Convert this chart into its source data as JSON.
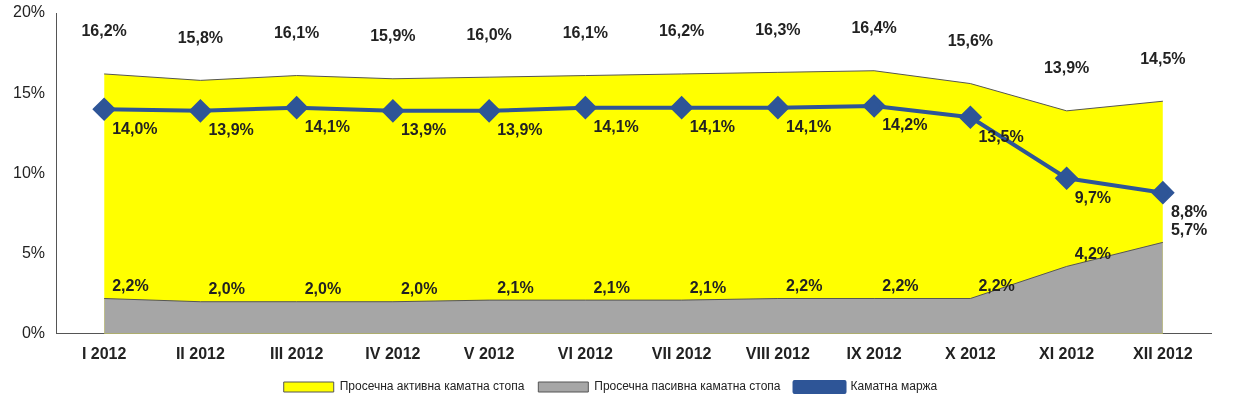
{
  "chart_data": {
    "type": "area",
    "categories": [
      "I 2012",
      "II 2012",
      "III 2012",
      "IV 2012",
      "V 2012",
      "VI 2012",
      "VII 2012",
      "VIII 2012",
      "IX 2012",
      "X 2012",
      "XI 2012",
      "XII 2012"
    ],
    "series": [
      {
        "name": "Просечна активна каматна стопа",
        "color": "#ffff00",
        "values": [
          16.2,
          15.8,
          16.1,
          15.9,
          16.0,
          16.1,
          16.2,
          16.3,
          16.4,
          15.6,
          13.9,
          14.5
        ],
        "value_labels": [
          "16,2%",
          "15,8%",
          "16,1%",
          "15,9%",
          "16,0%",
          "16,1%",
          "16,2%",
          "16,3%",
          "16,4%",
          "15,6%",
          "13,9%",
          "14,5%"
        ]
      },
      {
        "name": "Просечна пасивна каматна стопа",
        "color": "#a6a6a6",
        "values": [
          2.2,
          2.0,
          2.0,
          2.0,
          2.1,
          2.1,
          2.1,
          2.2,
          2.2,
          2.2,
          4.2,
          5.7
        ],
        "value_labels": [
          "2,2%",
          "2,0%",
          "2,0%",
          "2,0%",
          "2,1%",
          "2,1%",
          "2,1%",
          "2,2%",
          "2,2%",
          "2,2%",
          "4,2%",
          "5,7%"
        ]
      },
      {
        "name": "Каматна маржа",
        "type": "line",
        "color": "#2e5597",
        "marker": "diamond",
        "values": [
          14.0,
          13.9,
          14.1,
          13.9,
          13.9,
          14.1,
          14.1,
          14.1,
          14.2,
          13.5,
          9.7,
          8.8
        ],
        "value_labels": [
          "14,0%",
          "13,9%",
          "14,1%",
          "13,9%",
          "13,9%",
          "14,1%",
          "14,1%",
          "14,1%",
          "14,2%",
          "13,5%",
          "9,7%",
          "8,8%"
        ]
      }
    ],
    "ylim": [
      0,
      20
    ],
    "yticks": [
      {
        "value": 0,
        "label": "0%"
      },
      {
        "value": 5,
        "label": "5%"
      },
      {
        "value": 10,
        "label": "10%"
      },
      {
        "value": 15,
        "label": "15%"
      },
      {
        "value": 20,
        "label": "20%"
      }
    ],
    "legend": "bottom"
  }
}
